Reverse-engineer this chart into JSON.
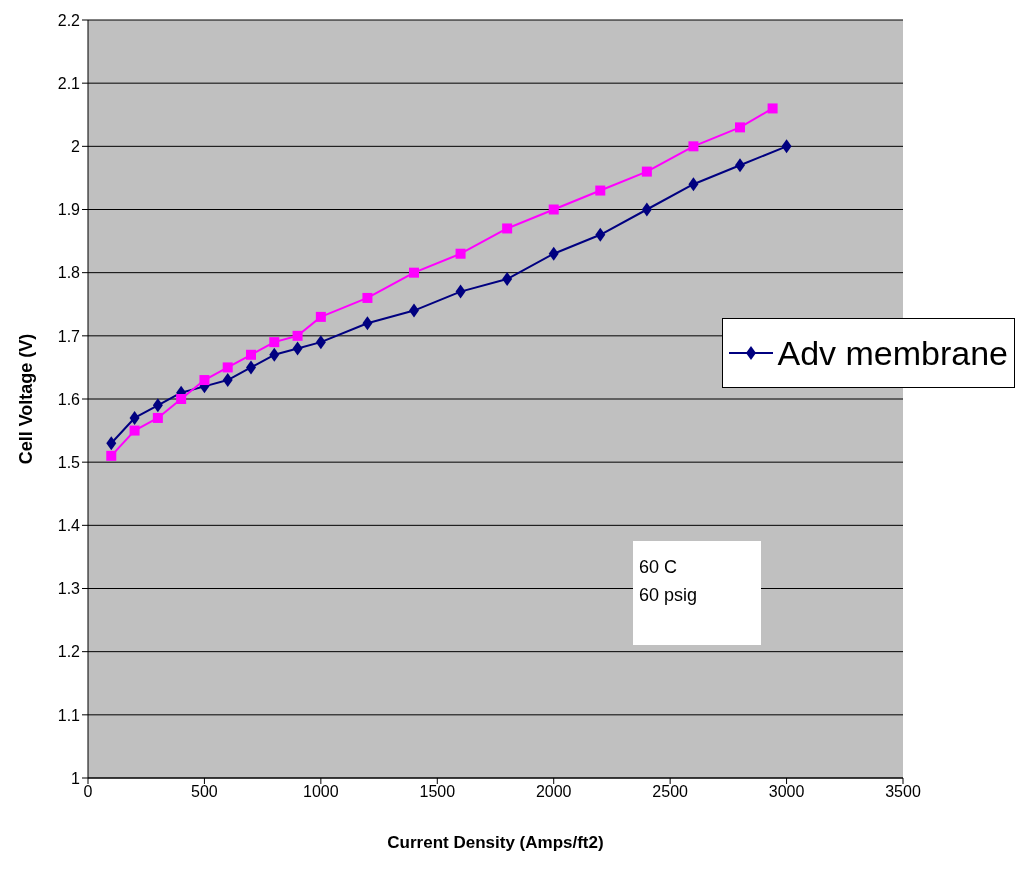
{
  "chart_data": {
    "type": "line",
    "xlabel": "Current Density (Amps/ft2)",
    "ylabel": "Cell Voltage (V)",
    "xlim": [
      0,
      3500
    ],
    "xticks": [
      0,
      500,
      1000,
      1500,
      2000,
      2500,
      3000,
      3500
    ],
    "ylim": [
      1,
      2.2
    ],
    "yticks": [
      1,
      1.1,
      1.2,
      1.3,
      1.4,
      1.5,
      1.6,
      1.7,
      1.8,
      1.9,
      2,
      2.1,
      2.2
    ],
    "grid": "y",
    "legend": "right",
    "line_style": "solid",
    "annotations": [
      "60 C",
      "60 psig"
    ],
    "series": [
      {
        "name": "Adv membrane",
        "color": "#000080",
        "marker": "diamond",
        "x": [
          100,
          200,
          300,
          400,
          500,
          600,
          700,
          800,
          900,
          1000,
          1200,
          1400,
          1600,
          1800,
          2000,
          2200,
          2400,
          2600,
          2800,
          3000
        ],
        "values": [
          1.53,
          1.57,
          1.59,
          1.61,
          1.62,
          1.63,
          1.65,
          1.67,
          1.68,
          1.69,
          1.72,
          1.74,
          1.77,
          1.79,
          1.83,
          1.86,
          1.9,
          1.94,
          1.97,
          2.0
        ]
      },
      {
        "color": "#ff00ff",
        "marker": "square",
        "x": [
          100,
          200,
          300,
          400,
          500,
          600,
          700,
          800,
          900,
          1000,
          1200,
          1400,
          1600,
          1800,
          2000,
          2200,
          2400,
          2600,
          2800,
          2940
        ],
        "values": [
          1.51,
          1.55,
          1.57,
          1.6,
          1.63,
          1.65,
          1.67,
          1.69,
          1.7,
          1.73,
          1.76,
          1.8,
          1.83,
          1.87,
          1.9,
          1.93,
          1.96,
          2.0,
          2.03,
          2.06
        ]
      }
    ]
  }
}
